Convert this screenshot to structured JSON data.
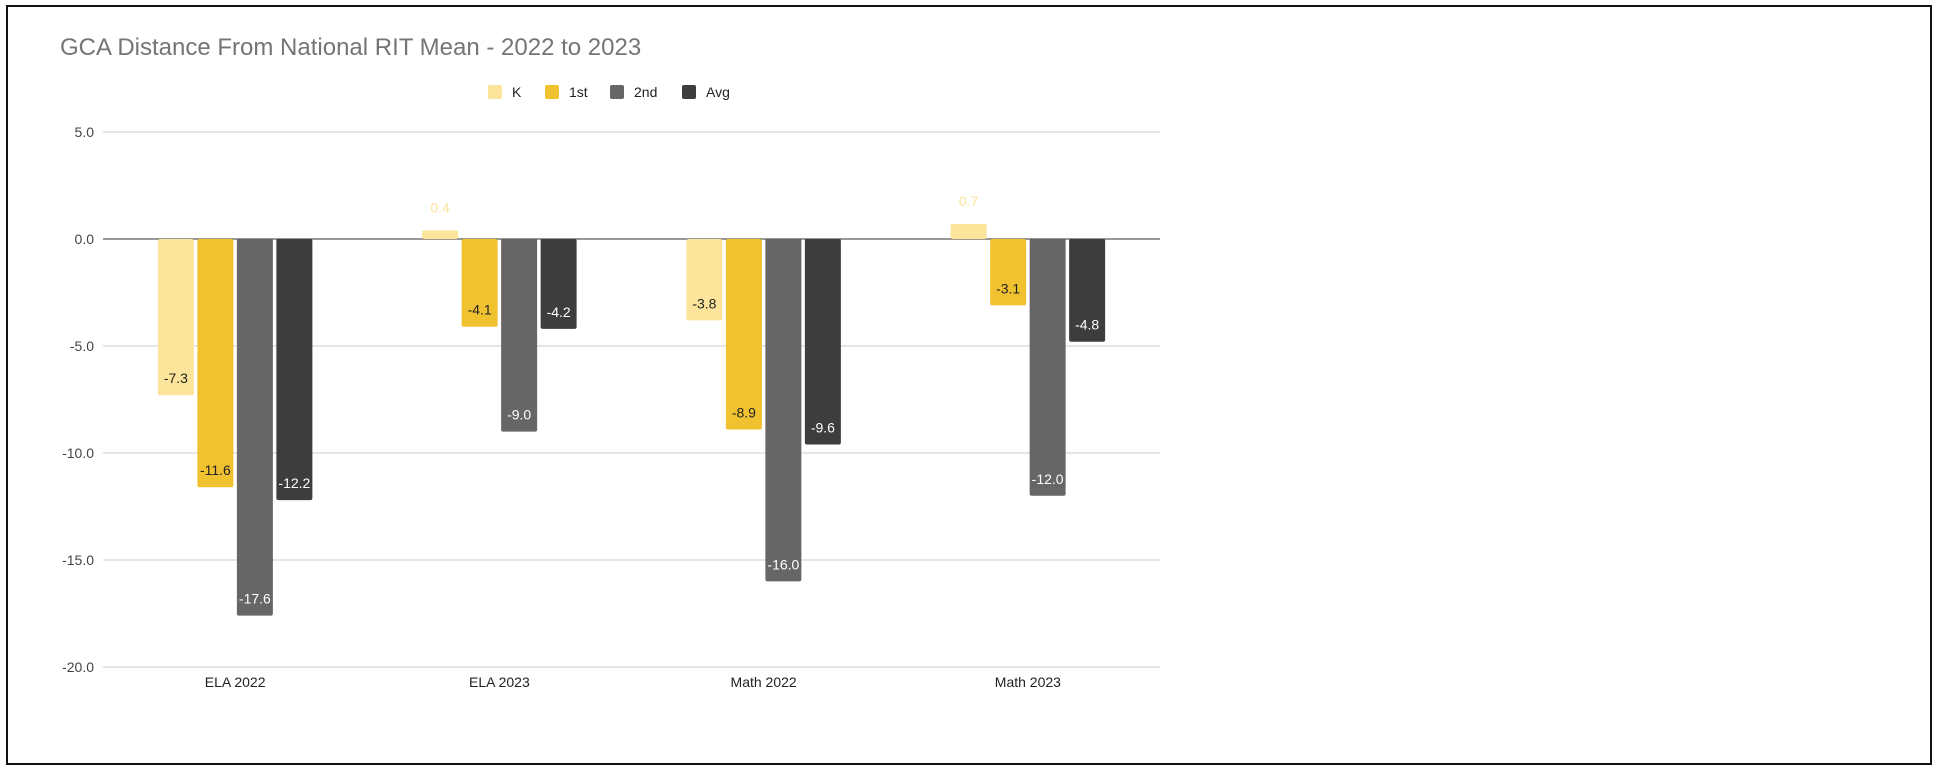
{
  "chart_data": {
    "type": "bar",
    "title": "GCA Distance From National RIT Mean - 2022 to 2023",
    "xlabel": "",
    "ylabel": "",
    "categories": [
      "ELA 2022",
      "ELA 2023",
      "Math 2022",
      "Math 2023"
    ],
    "series": [
      {
        "name": "K",
        "color": "#fce49a",
        "label_color": "#222222",
        "values": [
          -7.3,
          0.4,
          -3.8,
          0.7
        ]
      },
      {
        "name": "1st",
        "color": "#f0c230",
        "label_color": "#222222",
        "values": [
          -11.6,
          -4.1,
          -8.9,
          -3.1
        ]
      },
      {
        "name": "2nd",
        "color": "#666666",
        "label_color": "#ffffff",
        "values": [
          -17.6,
          -9.0,
          -16.0,
          -12.0
        ]
      },
      {
        "name": "Avg",
        "color": "#3d3d3d",
        "label_color": "#ffffff",
        "values": [
          -12.2,
          -4.2,
          -9.6,
          -4.8
        ]
      }
    ],
    "ylim": [
      -20,
      5
    ],
    "yticks": [
      "5.0",
      "0.0",
      "-5.0",
      "-10.0",
      "-15.0",
      "-20.0"
    ],
    "grid": true,
    "legend_position": "top-center",
    "positive_label_color": "#fce49a"
  }
}
